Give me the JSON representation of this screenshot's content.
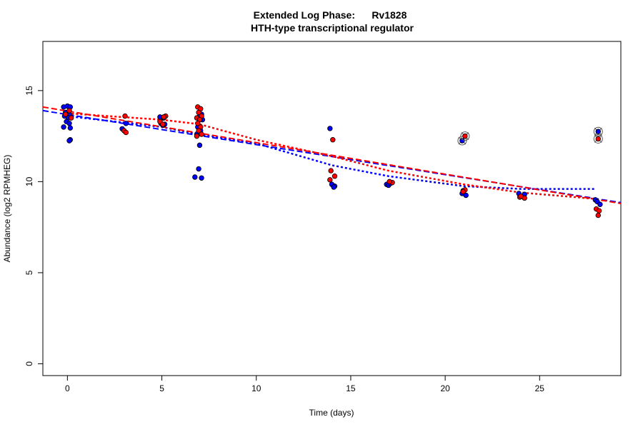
{
  "chart_data": {
    "type": "scatter",
    "title": "Extended Log Phase:      Rv1828",
    "subtitle": "HTH-type transcriptional regulator",
    "xlabel": "Time  (days)",
    "ylabel": "Abundance  (log2 RPMHEG)",
    "xlim": [
      -1.3,
      29.3
    ],
    "ylim": [
      -0.65,
      17.7
    ],
    "xticks": [
      0,
      5,
      10,
      15,
      20,
      25
    ],
    "yticks": [
      0,
      5,
      10,
      15
    ],
    "grid": false,
    "colors": {
      "blue": "#0000ff",
      "red": "#ff0000",
      "outlier_marker": "#555555"
    },
    "series": [
      {
        "color": "#0000ff",
        "points": [
          [
            -0.2,
            14.1
          ],
          [
            0,
            14.15
          ],
          [
            0.15,
            14.1
          ],
          [
            -0.1,
            13.8
          ],
          [
            0.1,
            13.7
          ],
          [
            -0.15,
            13.6
          ],
          [
            0.05,
            13.5
          ],
          [
            -0.05,
            13.3
          ],
          [
            0.1,
            13.2
          ],
          [
            -0.2,
            13.0
          ],
          [
            0.15,
            12.95
          ],
          [
            0.15,
            12.3
          ],
          [
            0.1,
            12.25
          ],
          [
            2.9,
            12.9
          ],
          [
            3.1,
            13.2
          ],
          [
            4.9,
            13.55
          ],
          [
            5.1,
            13.5
          ],
          [
            4.95,
            13.2
          ],
          [
            5.15,
            13.15
          ],
          [
            5.05,
            13.1
          ],
          [
            7.1,
            13.7
          ],
          [
            7.0,
            13.6
          ],
          [
            7.15,
            13.4
          ],
          [
            6.9,
            13.0
          ],
          [
            7.05,
            12.8
          ],
          [
            6.85,
            12.6
          ],
          [
            7.0,
            12.0
          ],
          [
            6.95,
            10.7
          ],
          [
            6.75,
            10.25
          ],
          [
            7.1,
            10.2
          ],
          [
            13.9,
            12.92
          ],
          [
            14.0,
            9.85
          ],
          [
            14.15,
            9.75
          ],
          [
            14.1,
            9.7
          ],
          [
            16.9,
            9.85
          ],
          [
            17.0,
            9.8
          ],
          [
            17.1,
            9.9
          ],
          [
            20.95,
            9.5
          ],
          [
            20.9,
            9.35
          ],
          [
            21.1,
            9.25
          ],
          [
            23.9,
            9.35
          ],
          [
            24.1,
            9.2
          ],
          [
            24.2,
            9.3
          ],
          [
            27.95,
            9.0
          ],
          [
            28.05,
            8.9
          ],
          [
            28.2,
            8.75
          ]
        ],
        "outliers": [
          [
            20.9,
            12.25
          ],
          [
            28.1,
            12.75
          ]
        ],
        "fit_dashed": [
          [
            -1.3,
            13.9
          ],
          [
            29.3,
            8.85
          ]
        ],
        "fit_dotted": [
          [
            0,
            13.6
          ],
          [
            5,
            13.0
          ],
          [
            7,
            12.6
          ],
          [
            10,
            12.1
          ],
          [
            14,
            10.9
          ],
          [
            17,
            10.3
          ],
          [
            21,
            9.75
          ],
          [
            24,
            9.6
          ],
          [
            28,
            9.6
          ]
        ]
      },
      {
        "color": "#ff0000",
        "points": [
          [
            0.1,
            13.9
          ],
          [
            -0.1,
            13.7
          ],
          [
            0.2,
            13.5
          ],
          [
            3.05,
            13.6
          ],
          [
            3.0,
            12.8
          ],
          [
            3.1,
            12.7
          ],
          [
            5.2,
            13.6
          ],
          [
            5.1,
            13.55
          ],
          [
            4.9,
            13.3
          ],
          [
            5.05,
            13.15
          ],
          [
            6.9,
            14.1
          ],
          [
            7.05,
            14.0
          ],
          [
            6.95,
            13.8
          ],
          [
            7.1,
            13.6
          ],
          [
            6.85,
            13.5
          ],
          [
            7.0,
            13.4
          ],
          [
            6.9,
            13.2
          ],
          [
            7.05,
            13.0
          ],
          [
            6.95,
            12.8
          ],
          [
            7.1,
            12.6
          ],
          [
            6.85,
            12.5
          ],
          [
            14.05,
            12.3
          ],
          [
            13.95,
            10.6
          ],
          [
            14.15,
            10.3
          ],
          [
            13.9,
            10.1
          ],
          [
            17.2,
            9.95
          ],
          [
            17.05,
            10.0
          ],
          [
            21.05,
            9.55
          ],
          [
            20.95,
            9.45
          ],
          [
            23.95,
            9.15
          ],
          [
            24.2,
            9.1
          ],
          [
            24.0,
            9.2
          ],
          [
            28.0,
            8.5
          ],
          [
            28.15,
            8.4
          ],
          [
            28.1,
            8.15
          ]
        ],
        "outliers": [
          [
            21.05,
            12.5
          ],
          [
            28.1,
            12.35
          ]
        ],
        "fit_dashed": [
          [
            -1.3,
            14.1
          ],
          [
            29.3,
            8.8
          ]
        ],
        "fit_dotted": [
          [
            0,
            13.75
          ],
          [
            5,
            13.4
          ],
          [
            7,
            13.15
          ],
          [
            10,
            12.3
          ],
          [
            14,
            11.4
          ],
          [
            17,
            10.6
          ],
          [
            21,
            9.85
          ],
          [
            24,
            9.4
          ],
          [
            28,
            9.05
          ]
        ]
      }
    ]
  }
}
